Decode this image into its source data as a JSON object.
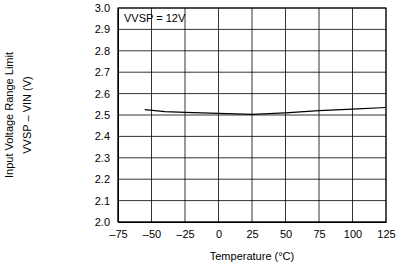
{
  "chart_data": {
    "type": "line",
    "xlabel": "Temperature (°C)",
    "ylabel": [
      "Input Voltage Range Limit",
      "VVSP – VIN (V)"
    ],
    "annotations": [
      "VVSP = 12V"
    ],
    "x": [
      -55,
      -40,
      -25,
      0,
      25,
      50,
      75,
      100,
      125
    ],
    "series": [
      {
        "color": "#000000",
        "values": [
          2.525,
          2.516,
          2.512,
          2.508,
          2.503,
          2.51,
          2.52,
          2.527,
          2.535
        ]
      }
    ],
    "xlim": [
      -75,
      125
    ],
    "xticks": [
      {
        "value": -75,
        "label": "–75"
      },
      {
        "value": -50,
        "label": "–50"
      },
      {
        "value": -25,
        "label": "–25"
      },
      0,
      25,
      50,
      75,
      100,
      125
    ],
    "ylim": [
      2.0,
      3.0
    ],
    "yticks": [
      {
        "value": 2.0,
        "label": "2.0"
      },
      2.1,
      2.2,
      2.3,
      2.4,
      2.5,
      2.6,
      2.7,
      2.8,
      2.9,
      {
        "value": 3.0,
        "label": "3.0"
      }
    ],
    "grid": true
  }
}
